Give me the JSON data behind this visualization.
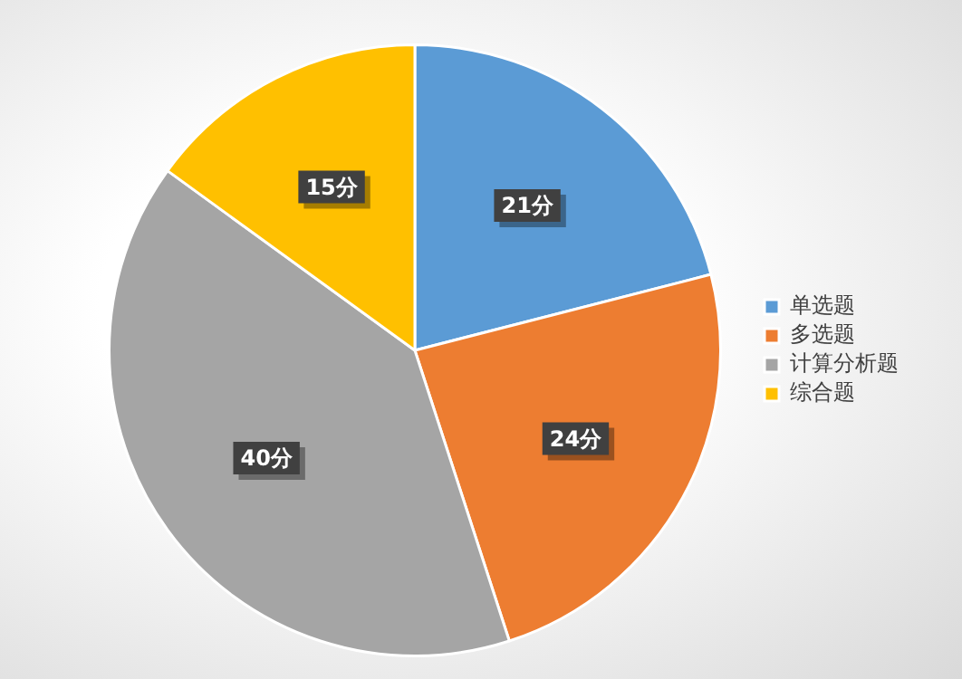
{
  "chart_data": {
    "type": "pie",
    "categories": [
      "单选题",
      "多选题",
      "计算分析题",
      "综合题"
    ],
    "values": [
      21,
      24,
      40,
      15
    ],
    "colors": [
      "#5b9bd5",
      "#ed7d31",
      "#a5a5a5",
      "#ffc000"
    ],
    "value_labels": [
      "21分",
      "24分",
      "40分",
      "15分"
    ],
    "legend": "right"
  }
}
